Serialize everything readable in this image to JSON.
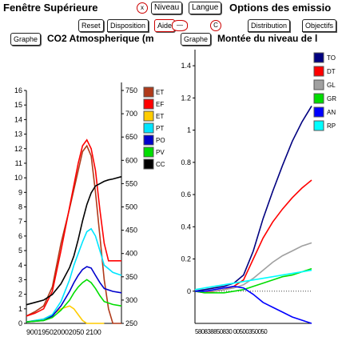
{
  "header": {
    "title": "Fenêtre Supérieure",
    "close_glyph": "x",
    "niveau_label": "Niveau",
    "langue_label": "Langue",
    "emission_options": "Options des emissio"
  },
  "toolbar": {
    "reset_label": "Reset",
    "disposition_label": "Disposition",
    "aide_label": "Aide",
    "dash_glyph": "—",
    "c_glyph": "C",
    "distribution_label": "Distribution",
    "objectifs_label": "Objectifs"
  },
  "left_panel": {
    "graph_button": "Graphe",
    "title": "CO2 Atmospherique (m",
    "left_axis_ticks": [
      "0",
      "1",
      "2",
      "3",
      "4",
      "5",
      "6",
      "7",
      "8",
      "9",
      "10",
      "11",
      "12",
      "13",
      "14",
      "15",
      "16"
    ],
    "right_axis_ticks": [
      "250",
      "300",
      "350",
      "400",
      "450",
      "500",
      "550",
      "600",
      "650",
      "700",
      "750"
    ],
    "x_axis_label": "900195020002050 2100"
  },
  "right_panel": {
    "graph_button": "Graphe",
    "title": "Montée du niveau de l",
    "y_axis_ticks": [
      "0",
      "0.2",
      "0.4",
      "0.6",
      "0.8",
      "1",
      "1.2",
      "1.4"
    ],
    "x_axis_label": "580838850830 00500350050"
  },
  "chart_data": [
    {
      "type": "line",
      "title": "CO2 Atmospherique (m",
      "xlim": [
        1900,
        2120
      ],
      "ylim": [
        0,
        16
      ],
      "y2lim": [
        250,
        750
      ],
      "legend_placement": "right",
      "series": [
        {
          "name": "ET",
          "color": "#b03a1a",
          "axis": "left",
          "x": [
            1900,
            1920,
            1940,
            1960,
            1980,
            2000,
            2010,
            2020,
            2030,
            2040,
            2050,
            2060,
            2070,
            2080,
            2090,
            2100,
            2120
          ],
          "values": [
            0.5,
            0.8,
            1.2,
            2.5,
            5.5,
            7.9,
            9.2,
            10.5,
            11.8,
            12.2,
            11.5,
            9,
            6,
            3,
            1,
            0,
            0
          ]
        },
        {
          "name": "EF",
          "color": "#ff0000",
          "axis": "left",
          "x": [
            1900,
            1920,
            1940,
            1960,
            1980,
            2000,
            2010,
            2020,
            2030,
            2040,
            2050,
            2060,
            2070,
            2080,
            2090,
            2100,
            2120
          ],
          "values": [
            0.5,
            0.7,
            1.0,
            2.2,
            5.0,
            8.0,
            9.5,
            11.0,
            12.2,
            12.6,
            12.0,
            10.5,
            7.8,
            5.5,
            4.3,
            4.3,
            4.3
          ]
        },
        {
          "name": "ET",
          "color": "#ffcc00",
          "axis": "left",
          "x": [
            1900,
            1940,
            1960,
            1980,
            2000,
            2010,
            2020,
            2030,
            2040,
            2050,
            2060,
            2070,
            2080
          ],
          "values": [
            0.1,
            0.3,
            0.6,
            1.0,
            1.2,
            1.0,
            0.6,
            0.2,
            0,
            0,
            0,
            0,
            0
          ]
        },
        {
          "name": "PT",
          "color": "#00e5ff",
          "axis": "left",
          "x": [
            1900,
            1940,
            1960,
            1980,
            2000,
            2010,
            2020,
            2030,
            2040,
            2050,
            2060,
            2070,
            2080,
            2100,
            2120
          ],
          "values": [
            0.1,
            0.3,
            0.6,
            1.5,
            3.0,
            4.0,
            4.8,
            5.6,
            6.3,
            6.5,
            6.0,
            5.0,
            4.0,
            3.5,
            3.3
          ]
        },
        {
          "name": "PO",
          "color": "#0000cc",
          "axis": "left",
          "x": [
            1900,
            1940,
            1960,
            1980,
            2000,
            2010,
            2020,
            2030,
            2040,
            2050,
            2060,
            2070,
            2080,
            2100,
            2120
          ],
          "values": [
            0.1,
            0.2,
            0.5,
            1.2,
            2.2,
            2.8,
            3.3,
            3.7,
            3.9,
            3.8,
            3.3,
            2.8,
            2.4,
            2.2,
            2.1
          ]
        },
        {
          "name": "PV",
          "color": "#00dd00",
          "axis": "left",
          "x": [
            1900,
            1940,
            1960,
            1980,
            2000,
            2010,
            2020,
            2030,
            2040,
            2050,
            2060,
            2070,
            2080,
            2100,
            2120
          ],
          "values": [
            0.1,
            0.2,
            0.4,
            0.9,
            1.6,
            2.1,
            2.5,
            2.8,
            3.0,
            2.8,
            2.4,
            1.9,
            1.5,
            1.3,
            1.2
          ]
        },
        {
          "name": "CC",
          "color": "#000000",
          "axis": "right",
          "x": [
            1900,
            1920,
            1940,
            1960,
            1980,
            2000,
            2010,
            2020,
            2030,
            2040,
            2050,
            2060,
            2070,
            2080,
            2090,
            2100,
            2120
          ],
          "values": [
            290,
            295,
            300,
            312,
            335,
            370,
            395,
            430,
            470,
            505,
            530,
            545,
            550,
            555,
            558,
            560,
            565
          ]
        }
      ]
    },
    {
      "type": "line",
      "title": "Montée du niveau de l",
      "ylim": [
        -0.2,
        1.5
      ],
      "legend_placement": "top-right",
      "series": [
        {
          "name": "TO",
          "color": "#000080",
          "x": [
            0,
            1,
            2,
            3,
            4,
            5,
            6,
            7,
            8,
            9,
            10,
            11,
            12
          ],
          "values": [
            0,
            0.01,
            0.02,
            0.03,
            0.05,
            0.1,
            0.25,
            0.45,
            0.62,
            0.78,
            0.93,
            1.05,
            1.15
          ]
        },
        {
          "name": "DT",
          "color": "#ff0000",
          "x": [
            0,
            1,
            2,
            3,
            4,
            5,
            6,
            7,
            8,
            9,
            10,
            11,
            12
          ],
          "values": [
            0,
            -0.01,
            0,
            0.01,
            0.03,
            0.07,
            0.2,
            0.33,
            0.43,
            0.51,
            0.58,
            0.64,
            0.69
          ]
        },
        {
          "name": "GL",
          "color": "#a0a0a0",
          "x": [
            0,
            1,
            2,
            3,
            4,
            5,
            6,
            7,
            8,
            9,
            10,
            11,
            12
          ],
          "values": [
            0,
            0,
            0,
            0.01,
            0.02,
            0.04,
            0.08,
            0.13,
            0.18,
            0.22,
            0.25,
            0.28,
            0.3
          ]
        },
        {
          "name": "GR",
          "color": "#00dd00",
          "x": [
            0,
            1,
            2,
            3,
            4,
            5,
            6,
            7,
            8,
            9,
            10,
            11,
            12
          ],
          "values": [
            0,
            -0.01,
            -0.01,
            -0.01,
            0,
            0.01,
            0.03,
            0.05,
            0.07,
            0.09,
            0.1,
            0.12,
            0.14
          ]
        },
        {
          "name": "AN",
          "color": "#0000ff",
          "x": [
            0,
            1,
            2,
            3,
            4,
            5,
            6,
            7,
            8,
            9,
            10,
            11,
            12
          ],
          "values": [
            0,
            0,
            0.01,
            0.02,
            0.03,
            0.02,
            -0.02,
            -0.07,
            -0.1,
            -0.13,
            -0.16,
            -0.18,
            -0.2
          ]
        },
        {
          "name": "RP",
          "color": "#00ffff",
          "x": [
            0,
            1,
            2,
            3,
            4,
            5,
            6,
            7,
            8,
            9,
            10,
            11,
            12
          ],
          "values": [
            0.01,
            0.02,
            0.03,
            0.04,
            0.05,
            0.06,
            0.07,
            0.08,
            0.09,
            0.1,
            0.11,
            0.12,
            0.13
          ]
        }
      ]
    }
  ]
}
